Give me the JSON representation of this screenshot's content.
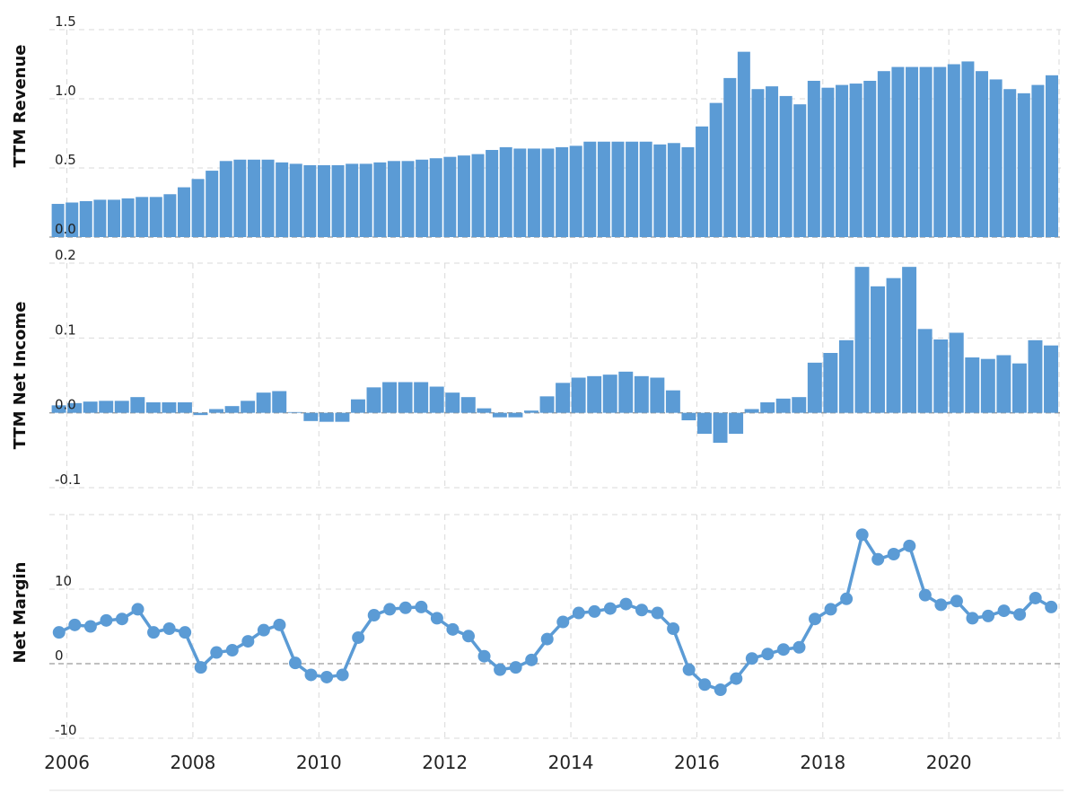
{
  "colors": {
    "series": "#5b9bd5",
    "grid": "#d9d9d9",
    "zero_line": "#9a9a9a"
  },
  "chart_data": [
    {
      "type": "bar",
      "ylabel": "TTM Revenue",
      "ylim": [
        0,
        1.5
      ],
      "yticks": [
        {
          "v": 0,
          "label": "0.0"
        },
        {
          "v": 0.5,
          "label": "0.5"
        },
        {
          "v": 1.0,
          "label": "1.0"
        },
        {
          "v": 1.5,
          "label": "1.5"
        }
      ],
      "grid": true,
      "values": [
        0.24,
        0.25,
        0.26,
        0.27,
        0.27,
        0.28,
        0.29,
        0.29,
        0.31,
        0.36,
        0.42,
        0.48,
        0.55,
        0.56,
        0.56,
        0.56,
        0.54,
        0.53,
        0.52,
        0.52,
        0.52,
        0.53,
        0.53,
        0.54,
        0.55,
        0.55,
        0.56,
        0.57,
        0.58,
        0.59,
        0.6,
        0.63,
        0.65,
        0.64,
        0.64,
        0.64,
        0.65,
        0.66,
        0.69,
        0.69,
        0.69,
        0.69,
        0.69,
        0.67,
        0.68,
        0.65,
        0.8,
        0.97,
        1.15,
        1.34,
        1.07,
        1.09,
        1.02,
        0.96,
        1.13,
        1.08,
        1.1,
        1.11,
        1.13,
        1.2,
        1.23,
        1.23,
        1.23,
        1.23,
        1.25,
        1.27,
        1.2,
        1.14,
        1.07,
        1.04,
        1.1,
        1.17
      ]
    },
    {
      "type": "bar",
      "ylabel": "TTM Net Income",
      "ylim": [
        -0.1,
        0.2
      ],
      "yticks": [
        {
          "v": -0.1,
          "label": "-0.1"
        },
        {
          "v": 0,
          "label": "0.0"
        },
        {
          "v": 0.1,
          "label": "0.1"
        },
        {
          "v": 0.2,
          "label": "0.2"
        }
      ],
      "grid": true,
      "values": [
        0.01,
        0.013,
        0.015,
        0.016,
        0.016,
        0.021,
        0.014,
        0.014,
        0.014,
        -0.003,
        0.005,
        0.009,
        0.016,
        0.027,
        0.029,
        0.001,
        -0.011,
        -0.012,
        -0.012,
        0.018,
        0.034,
        0.041,
        0.041,
        0.041,
        0.035,
        0.027,
        0.021,
        0.006,
        -0.006,
        -0.006,
        0.003,
        0.022,
        0.04,
        0.047,
        0.049,
        0.051,
        0.055,
        0.049,
        0.047,
        0.03,
        -0.01,
        -0.028,
        -0.04,
        -0.028,
        0.005,
        0.014,
        0.019,
        0.021,
        0.067,
        0.08,
        0.097,
        0.195,
        0.169,
        0.18,
        0.195,
        0.112,
        0.098,
        0.107,
        0.074,
        0.072,
        0.077,
        0.066,
        0.097,
        0.09
      ]
    },
    {
      "type": "line",
      "ylabel": "Net Margin",
      "ylim": [
        -10,
        20
      ],
      "yticks": [
        {
          "v": -10,
          "label": "-10"
        },
        {
          "v": 0,
          "label": "0"
        },
        {
          "v": 10,
          "label": "10"
        }
      ],
      "grid": true,
      "values": [
        4.2,
        5.2,
        5.0,
        5.8,
        6.0,
        7.3,
        4.2,
        4.7,
        4.2,
        -0.5,
        1.5,
        1.8,
        3.0,
        4.5,
        5.2,
        0.1,
        -1.5,
        -1.8,
        -1.5,
        3.5,
        6.5,
        7.3,
        7.5,
        7.6,
        6.1,
        4.6,
        3.7,
        1.0,
        -0.8,
        -0.5,
        0.5,
        3.3,
        5.6,
        6.8,
        7.0,
        7.4,
        8.0,
        7.2,
        6.8,
        4.7,
        -0.8,
        -2.8,
        -3.5,
        -2.0,
        0.7,
        1.3,
        1.9,
        2.2,
        6.0,
        7.3,
        8.7,
        17.3,
        14.0,
        14.7,
        15.8,
        9.2,
        7.9,
        8.4,
        6.1,
        6.4,
        7.1,
        6.6,
        8.8,
        7.6
      ]
    }
  ],
  "x_axis": {
    "ticks": [
      {
        "year": 2006,
        "label": "2006"
      },
      {
        "year": 2008,
        "label": "2008"
      },
      {
        "year": 2010,
        "label": "2010"
      },
      {
        "year": 2012,
        "label": "2012"
      },
      {
        "year": 2014,
        "label": "2014"
      },
      {
        "year": 2016,
        "label": "2016"
      },
      {
        "year": 2018,
        "label": "2018"
      },
      {
        "year": 2020,
        "label": "2020"
      }
    ]
  }
}
